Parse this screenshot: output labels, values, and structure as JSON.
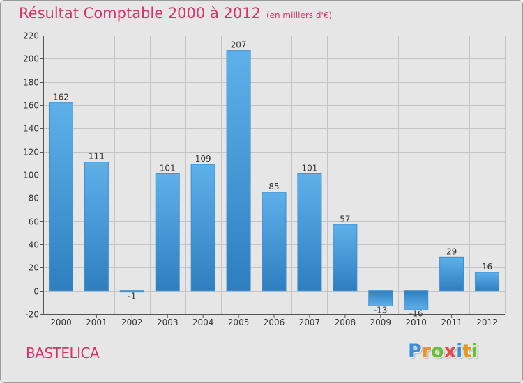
{
  "chart_data": {
    "type": "bar",
    "title": "Résultat Comptable 2000 à 2012",
    "subtitle": "(en milliers d'€)",
    "xlabel": "",
    "ylabel": "",
    "categories": [
      "2000",
      "2001",
      "2002",
      "2003",
      "2004",
      "2005",
      "2006",
      "2007",
      "2008",
      "2009",
      "2010",
      "2011",
      "2012"
    ],
    "values": [
      162,
      111,
      -1,
      101,
      109,
      207,
      85,
      101,
      57,
      -13,
      -16,
      29,
      16
    ],
    "value_labels": [
      "162",
      "111",
      "-1",
      "101",
      "109",
      "207",
      "85",
      "101",
      "57",
      "-13",
      "-16",
      "29",
      "16"
    ],
    "ylim": [
      -20,
      220
    ],
    "yticks": [
      -20,
      0,
      20,
      40,
      60,
      80,
      100,
      120,
      140,
      160,
      180,
      200,
      220
    ],
    "grid": true,
    "bar_color": "#4a9fe0"
  },
  "footer": {
    "town": "BASTELICA",
    "logo_text": "Proxiti",
    "logo_colors": [
      "#3d8fd6",
      "#e8961e",
      "#6abf3a",
      "#e84a4a",
      "#3d8fd6",
      "#e8961e",
      "#6abf3a"
    ]
  }
}
